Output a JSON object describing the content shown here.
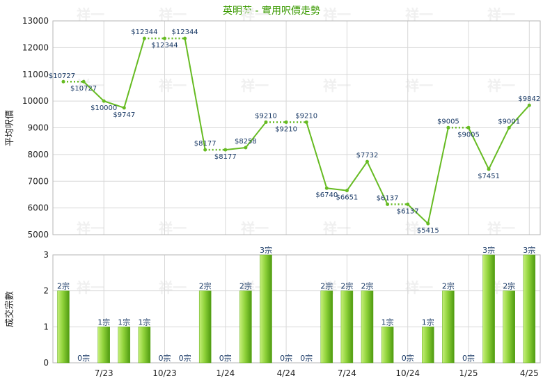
{
  "chart_data": {
    "title": "英明苑 - 實用呎價走勢",
    "watermark_text": "祥一",
    "colors": {
      "line": "#66bb22",
      "bar_light": "#c6ef7a",
      "bar_dark": "#4e9a10",
      "title": "#3a9a00"
    },
    "price_chart": {
      "type": "line",
      "ylabel": "平均呎價",
      "ylim": [
        5000,
        13000
      ],
      "yticks": [
        "13000",
        "12000",
        "11000",
        "10000",
        "9000",
        "8000",
        "7000",
        "6000",
        "5000"
      ],
      "ytick_values": [
        13000,
        12000,
        11000,
        10000,
        9000,
        8000,
        7000,
        6000,
        5000
      ],
      "points": [
        {
          "i": 0,
          "y": 10727,
          "label": "$10727"
        },
        {
          "i": 1,
          "y": 10727,
          "label": "$10727"
        },
        {
          "i": 2,
          "y": 10000,
          "label": "$10000"
        },
        {
          "i": 3,
          "y": 9747,
          "label": "$9747"
        },
        {
          "i": 4,
          "y": 12344,
          "label": "$12344"
        },
        {
          "i": 5,
          "y": 12344,
          "label": "$12344"
        },
        {
          "i": 6,
          "y": 12344,
          "label": "$12344"
        },
        {
          "i": 7,
          "y": 8177,
          "label": "$8177"
        },
        {
          "i": 8,
          "y": 8177,
          "label": "$8177"
        },
        {
          "i": 9,
          "y": 8258,
          "label": "$8258"
        },
        {
          "i": 10,
          "y": 9210,
          "label": "$9210"
        },
        {
          "i": 11,
          "y": 9210,
          "label": "$9210"
        },
        {
          "i": 12,
          "y": 9210,
          "label": "$9210"
        },
        {
          "i": 13,
          "y": 6740,
          "label": "$6740"
        },
        {
          "i": 14,
          "y": 6651,
          "label": "$6651"
        },
        {
          "i": 15,
          "y": 7732,
          "label": "$7732"
        },
        {
          "i": 16,
          "y": 6137,
          "label": "$6137"
        },
        {
          "i": 17,
          "y": 6137,
          "label": "$6137"
        },
        {
          "i": 18,
          "y": 5415,
          "label": "$5415"
        },
        {
          "i": 19,
          "y": 9005,
          "label": "$9005"
        },
        {
          "i": 20,
          "y": 9005,
          "label": "$9005"
        },
        {
          "i": 21,
          "y": 7451,
          "label": "$7451"
        },
        {
          "i": 22,
          "y": 9001,
          "label": "$9001"
        },
        {
          "i": 23,
          "y": 9842,
          "label": "$9842"
        }
      ]
    },
    "volume_chart": {
      "type": "bar",
      "ylabel": "成交宗數",
      "ylim": [
        0,
        3
      ],
      "yticks": [
        "3",
        "2",
        "1",
        "0"
      ],
      "ytick_values": [
        3,
        2,
        1,
        0
      ],
      "values": [
        2,
        0,
        1,
        1,
        1,
        0,
        0,
        2,
        0,
        2,
        3,
        0,
        0,
        2,
        2,
        2,
        1,
        0,
        1,
        2,
        0,
        3,
        2,
        3
      ],
      "labels": [
        "2宗",
        "0宗",
        "1宗",
        "1宗",
        "1宗",
        "0宗",
        "0宗",
        "2宗",
        "0宗",
        "2宗",
        "3宗",
        "0宗",
        "0宗",
        "2宗",
        "2宗",
        "2宗",
        "1宗",
        "0宗",
        "1宗",
        "2宗",
        "0宗",
        "3宗",
        "2宗",
        "3宗"
      ]
    },
    "x_tick_labels": [
      "7/23",
      "10/23",
      "1/24",
      "4/24",
      "7/24",
      "10/24",
      "1/25",
      "4/25"
    ],
    "x_tick_indices": [
      2,
      5,
      8,
      11,
      14,
      17,
      20,
      23
    ]
  }
}
